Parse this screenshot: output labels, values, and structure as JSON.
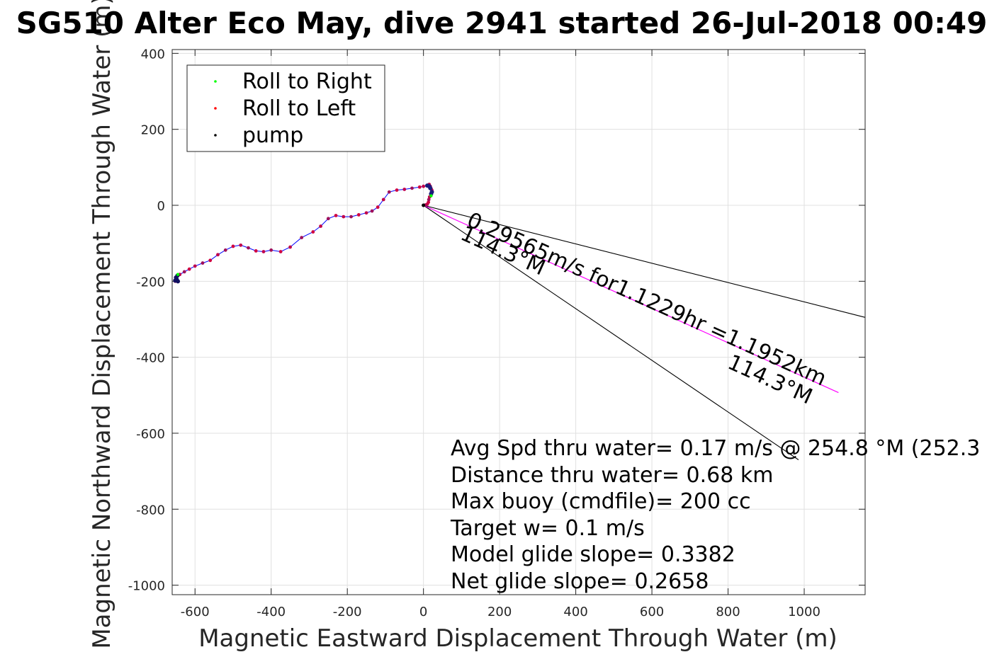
{
  "chart_data": {
    "type": "scatter",
    "title": "SG510 Alter Eco May, dive 2941 started 26-Jul-2018 00:49",
    "xlabel": "Magnetic Eastward Displacement Through Water (m)",
    "ylabel": "Magnetic Northward Displacement Through Water (m)",
    "xlim": [
      -660,
      1160
    ],
    "ylim": [
      -1025,
      410
    ],
    "xticks": [
      -600,
      -400,
      -200,
      0,
      200,
      400,
      600,
      800,
      1000
    ],
    "yticks": [
      400,
      200,
      0,
      -200,
      -400,
      -600,
      -800,
      -1000
    ],
    "grid": true,
    "legend": {
      "placement": "top-left",
      "entries": [
        {
          "label": "Roll to Right",
          "color": "#00ff00"
        },
        {
          "label": "Roll to Left",
          "color": "#ff0000"
        },
        {
          "label": "pump",
          "color": "#000000"
        }
      ]
    },
    "track": {
      "color": "#0000ff",
      "x": [
        0,
        5,
        10,
        13,
        14,
        16,
        20,
        23,
        22,
        20,
        18,
        15,
        15,
        10,
        0,
        -10,
        -30,
        -50,
        -70,
        -90,
        -105,
        -120,
        -135,
        -150,
        -170,
        -190,
        -210,
        -230,
        -250,
        -270,
        -290,
        -320,
        -350,
        -375,
        -400,
        -420,
        -440,
        -460,
        -480,
        -500,
        -520,
        -540,
        -560,
        -580,
        -600,
        -615,
        -628,
        -640,
        -648,
        -652,
        -650,
        -645
      ],
      "y": [
        0,
        1,
        3,
        8,
        15,
        22,
        30,
        36,
        40,
        44,
        50,
        55,
        52,
        52,
        50,
        48,
        45,
        42,
        40,
        35,
        15,
        -5,
        -15,
        -20,
        -25,
        -30,
        -30,
        -27,
        -35,
        -55,
        -70,
        -85,
        -110,
        -122,
        -118,
        -122,
        -120,
        -112,
        -105,
        -108,
        -118,
        -130,
        -145,
        -152,
        -160,
        -168,
        -175,
        -182,
        -195,
        -200,
        -195,
        -200
      ]
    },
    "annotations": [
      {
        "text": "0.29565m/s for1.1229hr =1.1952km",
        "rotation": -24.3
      },
      {
        "text": "114.3°M",
        "rotation": 24.3
      },
      {
        "text": "114.3°M",
        "rotation": 24.3
      }
    ],
    "reference_lines": [
      {
        "color": "#000000",
        "x": [
          0,
          1160
        ],
        "y": [
          0,
          -295
        ]
      },
      {
        "color": "#000000",
        "x": [
          0,
          985
        ],
        "y": [
          0,
          -670
        ]
      },
      {
        "color": "#ff00ff",
        "x": [
          0,
          1090
        ],
        "y": [
          0,
          -493
        ]
      }
    ],
    "stats": [
      "Avg Spd thru water=  0.17 m/s @ 254.8 °M (252.3",
      "Distance thru water=  0.68 km",
      "Max buoy (cmdfile)= 200 cc",
      "Target w= 0.1 m/s",
      "Model glide slope= 0.3382",
      "Net glide slope= 0.2658"
    ]
  }
}
